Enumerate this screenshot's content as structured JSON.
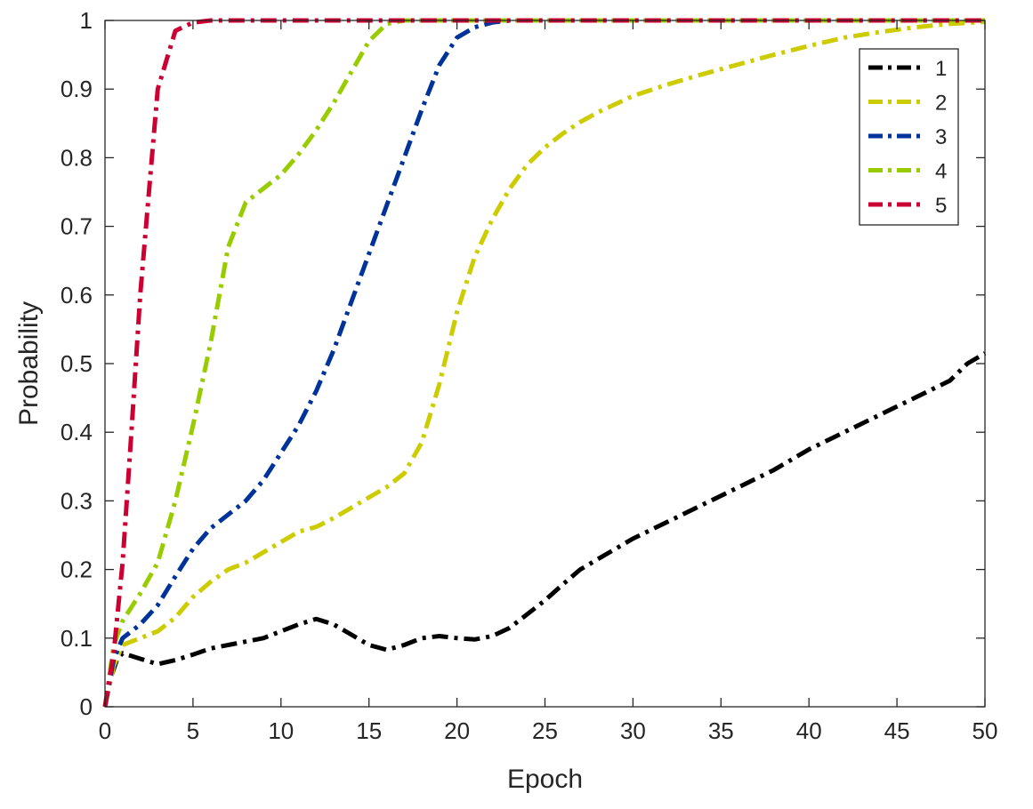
{
  "chart_data": {
    "type": "line",
    "title": "",
    "xlabel": "Epoch",
    "ylabel": "Probability",
    "xlim": [
      0,
      50
    ],
    "ylim": [
      0,
      1
    ],
    "xticks": [
      0,
      5,
      10,
      15,
      20,
      25,
      30,
      35,
      40,
      45,
      50
    ],
    "yticks": [
      0,
      0.1,
      0.2,
      0.3,
      0.4,
      0.5,
      0.6,
      0.7,
      0.8,
      0.9,
      1
    ],
    "xtick_labels": [
      "0",
      "5",
      "10",
      "15",
      "20",
      "25",
      "30",
      "35",
      "40",
      "45",
      "50"
    ],
    "ytick_labels": [
      "0",
      "0.1",
      "0.2",
      "0.3",
      "0.4",
      "0.5",
      "0.6",
      "0.7",
      "0.8",
      "0.9",
      "1"
    ],
    "grid": false,
    "legend_position": "top-right",
    "line_style": "dash-dot",
    "series": [
      {
        "name": "1",
        "color": "#000000",
        "x": [
          0,
          0.3,
          0.7,
          1,
          2,
          3,
          4,
          5,
          6,
          7,
          8,
          9,
          10,
          11,
          12,
          13,
          14,
          15,
          16,
          17,
          18,
          19,
          20,
          21,
          22,
          23,
          24,
          25,
          26,
          27,
          28,
          30,
          32,
          34,
          36,
          38,
          40,
          42,
          44,
          46,
          48,
          49,
          50
        ],
        "y": [
          0,
          0.04,
          0.07,
          0.078,
          0.07,
          0.062,
          0.068,
          0.076,
          0.085,
          0.09,
          0.095,
          0.1,
          0.11,
          0.12,
          0.128,
          0.12,
          0.105,
          0.09,
          0.083,
          0.09,
          0.1,
          0.103,
          0.1,
          0.098,
          0.103,
          0.115,
          0.135,
          0.155,
          0.178,
          0.2,
          0.215,
          0.245,
          0.27,
          0.295,
          0.32,
          0.345,
          0.375,
          0.4,
          0.425,
          0.45,
          0.475,
          0.5,
          0.515
        ]
      },
      {
        "name": "2",
        "color": "#cccc00",
        "x": [
          0,
          0.5,
          1,
          2,
          3,
          4,
          5,
          6,
          7,
          8,
          9,
          10,
          11,
          12,
          13,
          14,
          15,
          16,
          17,
          18,
          19,
          20,
          21,
          22,
          23,
          24,
          25,
          26,
          27,
          28,
          30,
          32,
          34,
          36,
          38,
          40,
          42,
          44,
          46,
          48,
          50
        ],
        "y": [
          0,
          0.06,
          0.09,
          0.1,
          0.11,
          0.13,
          0.16,
          0.182,
          0.2,
          0.21,
          0.225,
          0.24,
          0.255,
          0.262,
          0.275,
          0.29,
          0.305,
          0.32,
          0.34,
          0.385,
          0.47,
          0.575,
          0.655,
          0.71,
          0.755,
          0.79,
          0.815,
          0.835,
          0.852,
          0.866,
          0.89,
          0.907,
          0.922,
          0.936,
          0.95,
          0.963,
          0.975,
          0.983,
          0.99,
          0.995,
          0.998
        ]
      },
      {
        "name": "3",
        "color": "#003399",
        "x": [
          0,
          0.5,
          1,
          2,
          3,
          4,
          5,
          6,
          7,
          8,
          9,
          10,
          11,
          12,
          13,
          14,
          15,
          16,
          17,
          18,
          19,
          20,
          21,
          22,
          23,
          24,
          50
        ],
        "y": [
          0,
          0.07,
          0.1,
          0.12,
          0.148,
          0.19,
          0.23,
          0.26,
          0.28,
          0.3,
          0.33,
          0.37,
          0.41,
          0.46,
          0.52,
          0.59,
          0.66,
          0.73,
          0.8,
          0.87,
          0.935,
          0.975,
          0.99,
          0.997,
          1,
          1,
          1
        ]
      },
      {
        "name": "4",
        "color": "#99cc00",
        "x": [
          0,
          0.5,
          1,
          2,
          3,
          4,
          5,
          6,
          7,
          8,
          9,
          10,
          11,
          12,
          13,
          14,
          15,
          16,
          17,
          18,
          50
        ],
        "y": [
          0,
          0.09,
          0.125,
          0.165,
          0.21,
          0.3,
          0.41,
          0.53,
          0.67,
          0.735,
          0.755,
          0.775,
          0.805,
          0.84,
          0.88,
          0.925,
          0.97,
          0.995,
          1,
          1,
          1
        ]
      },
      {
        "name": "5",
        "color": "#cc0033",
        "x": [
          0,
          0.5,
          1,
          1.5,
          2,
          2.5,
          3,
          4,
          5,
          6,
          7,
          50
        ],
        "y": [
          0,
          0.08,
          0.21,
          0.4,
          0.6,
          0.75,
          0.9,
          0.985,
          0.997,
          1,
          1,
          1
        ]
      }
    ]
  }
}
